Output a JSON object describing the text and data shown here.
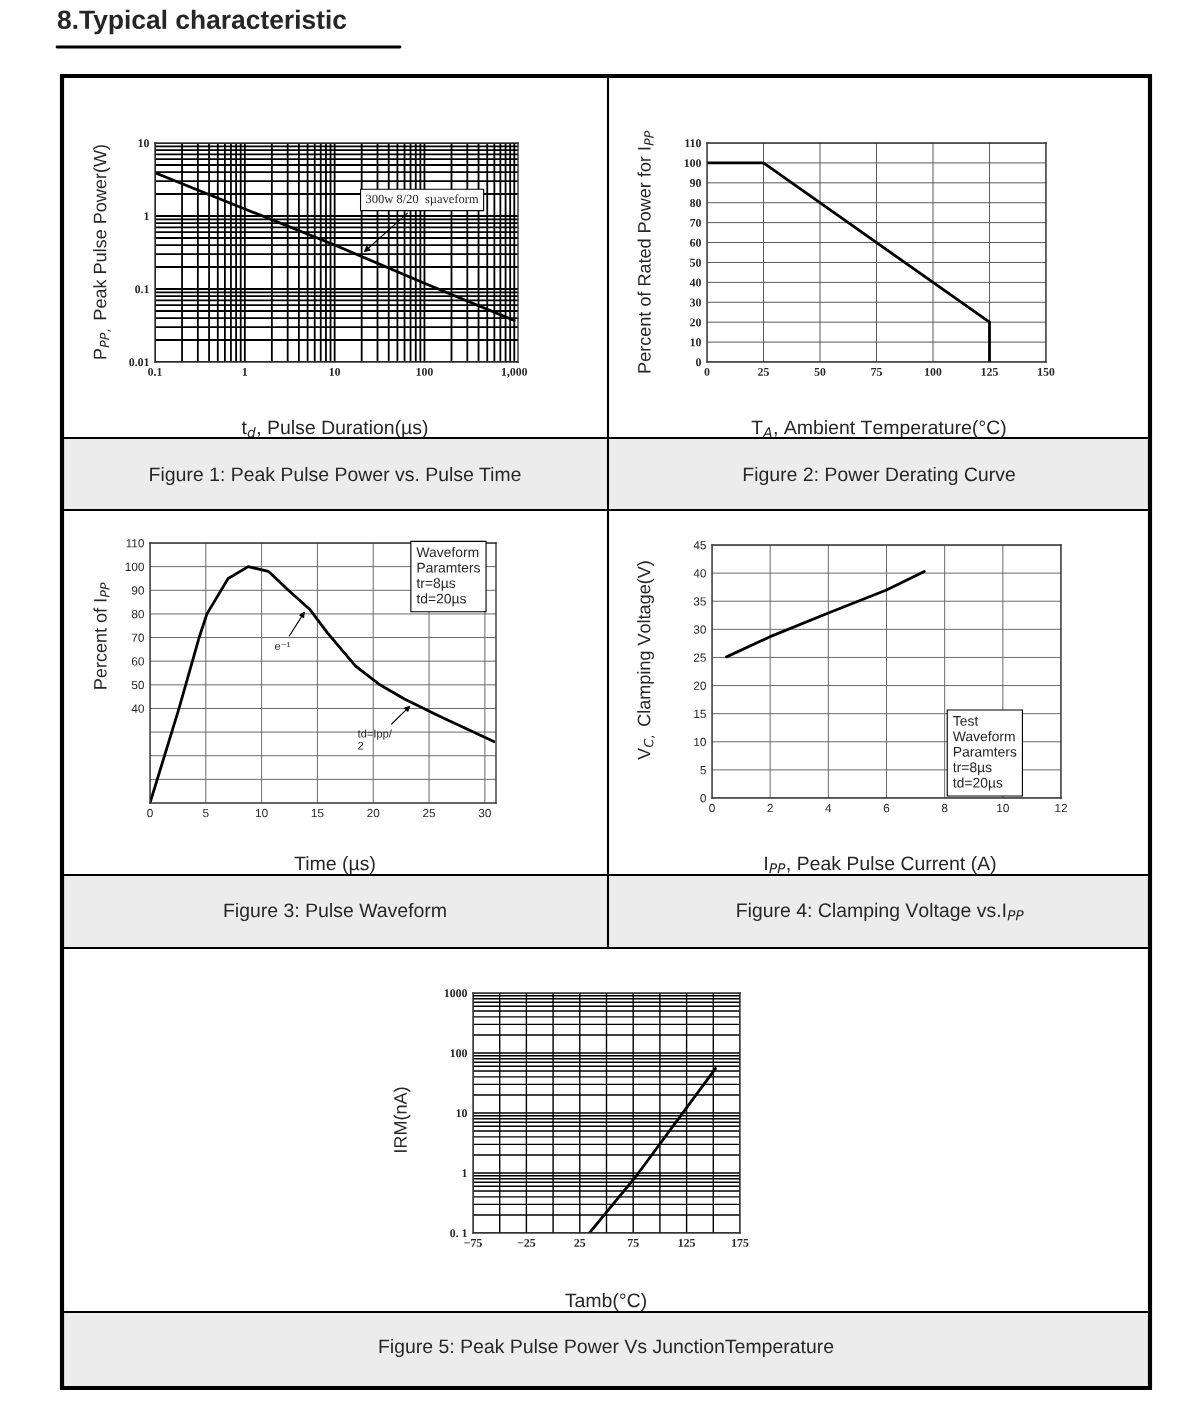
{
  "chart_data": [
    {
      "type": "other",
      "title": "8.Typical characteristic"
    },
    {
      "type": "line",
      "title": "Figure 1: Peak Pulse Power vs. Pulse Time",
      "xlabel": "t$_{d}$, Pulse Duration(µs)",
      "ylabel": "P$_{PP,}$ Peak Pulse Power(W)",
      "log": "xy",
      "grid": true,
      "xlim": [
        0.1,
        1100
      ],
      "ylim": [
        0.01,
        10
      ],
      "xticks": [
        0.1,
        1,
        10,
        100,
        {
          "value": 1000,
          "label": "1,000"
        }
      ],
      "yticks": [
        0.01,
        0.1,
        1,
        10
      ],
      "x": [
        0.1,
        1,
        10,
        100,
        1000
      ],
      "series": [
        {
          "color": "#000000",
          "values": [
            3.9,
            1.25,
            0.4,
            0.12,
            0.037
          ]
        }
      ],
      "annotations": [
        {
          "text": "300w 8/20  sµaveform",
          "x": 20,
          "y": 0.3
        }
      ]
    },
    {
      "type": "line",
      "title": "Figure 2: Power Derating Curve",
      "xlabel": "T$_{A}$, Ambient Temperature(°C)",
      "ylabel": "Percent of Rated Power for I$_{PP}$",
      "grid": true,
      "xlim": [
        0,
        150
      ],
      "ylim": [
        0,
        110
      ],
      "xticks": [
        0,
        25,
        50,
        75,
        100,
        125,
        150
      ],
      "yticks": [
        0,
        10,
        20,
        30,
        40,
        50,
        60,
        70,
        80,
        90,
        100,
        110
      ],
      "x": [
        0,
        25,
        125,
        125
      ],
      "series": [
        {
          "color": "#000000",
          "values": [
            100,
            100,
            20,
            0
          ]
        }
      ]
    },
    {
      "type": "line",
      "title": "Figure 3: Pulse Waveform",
      "xlabel": "Time (µs)",
      "ylabel": "Percent of I$_{PP}$",
      "grid": true,
      "xlim": [
        0,
        31
      ],
      "ylim": [
        0,
        110
      ],
      "xticks": [
        0,
        5,
        10,
        15,
        20,
        25,
        30
      ],
      "yticks": [
        {
          "value": 10,
          "label": null
        },
        {
          "value": 20,
          "label": null
        },
        {
          "value": 30,
          "label": null
        },
        40,
        50,
        60,
        70,
        80,
        90,
        100,
        110
      ],
      "x": [
        0,
        2.6,
        4.4,
        5.1,
        7,
        8.8,
        10.6,
        12.4,
        14.3,
        15.9,
        18.4,
        20.6,
        22.8,
        25.8,
        30.8
      ],
      "series": [
        {
          "color": "#000000",
          "values": [
            0,
            40,
            70,
            80,
            95,
            100,
            98,
            90,
            82,
            72,
            58,
            50,
            44,
            37,
            26
          ]
        }
      ],
      "annotations": [
        "Waveform\nParamters\ntr=8µs\ntd=20µs",
        {
          "text": "e⁻¹",
          "x": 14,
          "y": 82
        },
        {
          "text": "td=Ipp/\n2",
          "x": 23.5,
          "y": 42
        }
      ]
    },
    {
      "type": "line",
      "title": "Figure 4: Clamping Voltage vs.I$_{PP}$",
      "xlabel": "I$_{PP}$, Peak Pulse Current (A)",
      "ylabel": "V$_{C,}$ Clamping Voltage(V)",
      "grid": true,
      "xlim": [
        0,
        12
      ],
      "ylim": [
        0,
        45
      ],
      "xticks": [
        0,
        2,
        4,
        6,
        8,
        10,
        12
      ],
      "yticks": [
        0,
        5,
        10,
        15,
        20,
        25,
        30,
        35,
        40,
        45
      ],
      "x": [
        0.5,
        2,
        4,
        6,
        7.3
      ],
      "series": [
        {
          "color": "#000000",
          "values": [
            25.1,
            28.7,
            32.9,
            37,
            40.3
          ]
        }
      ],
      "annotations": [
        "Test\nWaveform\nParamters\ntr=8µs\ntd=20µs"
      ]
    },
    {
      "type": "line",
      "title": "Figure 5: Peak Pulse Power Vs JunctionTemperature",
      "xlabel": "Tamb(°C)",
      "ylabel": "IRM(nA)",
      "log": "y",
      "grid": true,
      "xlim": [
        -75,
        175
      ],
      "ylim": [
        0.1,
        1000
      ],
      "xticks": [
        {
          "value": -75,
          "label": "−75"
        },
        {
          "value": -50,
          "label": null
        },
        {
          "value": -25,
          "label": "−25"
        },
        {
          "value": 0,
          "label": null
        },
        25,
        {
          "value": 50,
          "label": null
        },
        75,
        {
          "value": 100,
          "label": null
        },
        125,
        {
          "value": 150,
          "label": null
        },
        175
      ],
      "yticks": [
        {
          "value": 0.1,
          "label": "0. 1"
        },
        1,
        10,
        100,
        1000
      ],
      "x": [
        34,
        77,
        152
      ],
      "series": [
        {
          "color": "#000000",
          "values": [
            0.1,
            0.85,
            55
          ]
        }
      ]
    }
  ]
}
